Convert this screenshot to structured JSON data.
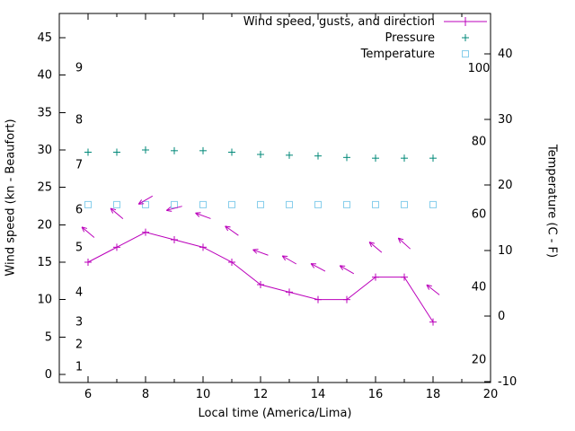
{
  "chart_data": {
    "type": "line",
    "title": "",
    "xlabel": "Local time (America/Lima)",
    "ylabel_left": "Wind speed (kn - Beaufort)",
    "ylabel_right": "Temperature (C - F)",
    "x_range": [
      5,
      20
    ],
    "y_left_range": [
      -1.1,
      48.2
    ],
    "y_right_range": [
      -10.1,
      46.2
    ],
    "x_major_ticks": [
      6,
      8,
      10,
      12,
      14,
      16,
      18,
      20
    ],
    "x_minor_step": 1,
    "y_left_ticks": [
      0,
      5,
      10,
      15,
      20,
      25,
      30,
      35,
      40,
      45
    ],
    "y_right_ticks": [
      -10,
      0,
      10,
      20,
      30,
      40
    ],
    "beaufort_scale_labels": [
      {
        "label": "1",
        "kn": 1
      },
      {
        "label": "2",
        "kn": 4
      },
      {
        "label": "3",
        "kn": 7
      },
      {
        "label": "4",
        "kn": 11
      },
      {
        "label": "5",
        "kn": 17
      },
      {
        "label": "6",
        "kn": 22
      },
      {
        "label": "7",
        "kn": 28
      },
      {
        "label": "8",
        "kn": 34
      },
      {
        "label": "9",
        "kn": 41
      }
    ],
    "fahrenheit_scale_labels": [
      20,
      40,
      60,
      80,
      100
    ],
    "colors": {
      "wind": "#bb00bb",
      "pressure": "#008878",
      "temperature": "#87ceeb",
      "axis": "#000000"
    },
    "legend": [
      {
        "label": "Wind speed, gusts, and direction",
        "series": "wind",
        "marker": "line-plus"
      },
      {
        "label": "Pressure",
        "series": "pressure",
        "marker": "plus"
      },
      {
        "label": "Temperature",
        "series": "temperature",
        "marker": "square"
      }
    ],
    "series": {
      "x_hours": [
        6,
        7,
        8,
        9,
        10,
        11,
        12,
        13,
        14,
        15,
        16,
        17,
        18
      ],
      "wind_speed_kn": [
        15,
        17,
        19,
        18,
        17,
        15,
        12,
        11,
        10,
        10,
        13,
        13,
        7
      ],
      "gusts_kn": [
        19,
        21.5,
        23.3,
        22.2,
        21.2,
        19.2,
        16.3,
        15.3,
        14.3,
        14,
        17,
        17.5,
        11.3
      ],
      "gust_arrow_angles_deg": [
        140,
        140,
        210,
        195,
        160,
        145,
        160,
        150,
        152,
        150,
        140,
        138,
        142
      ],
      "pressure_on_left_axis": [
        29.7,
        29.7,
        30,
        29.9,
        29.9,
        29.7,
        29.4,
        29.3,
        29.2,
        29,
        28.9,
        28.9,
        28.9
      ],
      "temperature_c": [
        17,
        17,
        17,
        17,
        17,
        17,
        17,
        17,
        17,
        17,
        17,
        17,
        17
      ]
    }
  }
}
